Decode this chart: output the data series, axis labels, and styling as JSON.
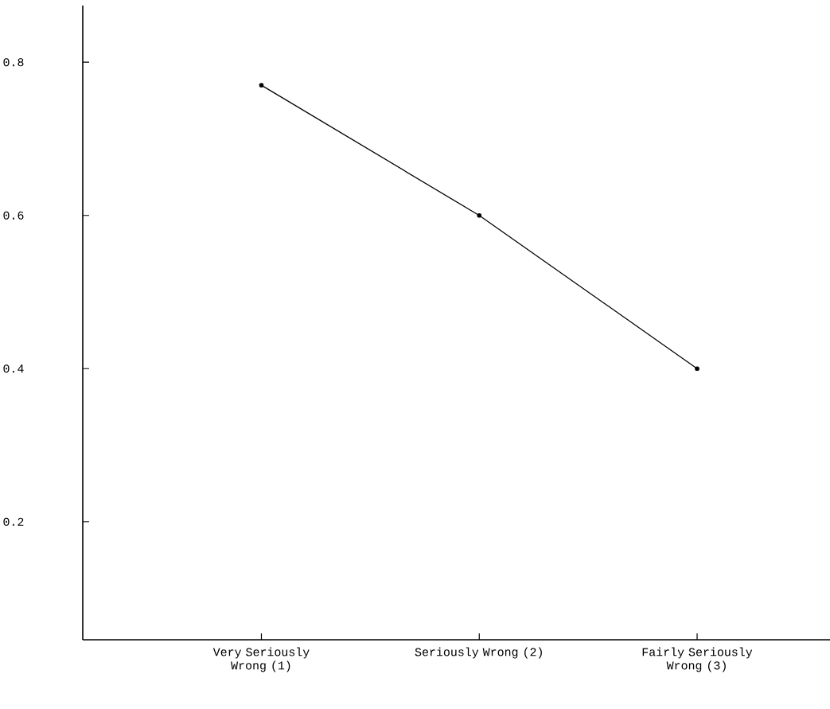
{
  "chart_data": {
    "type": "line",
    "categories": [
      "Very Seriously Wrong (1)",
      "Seriously Wrong (2)",
      "Fairly Seriously Wrong (3)"
    ],
    "values": [
      0.77,
      0.6,
      0.4
    ],
    "color": "#000000",
    "ylim": [
      0.046,
      0.874
    ],
    "yticks": [
      0.2,
      0.4,
      0.6,
      0.8
    ],
    "marker": "circle",
    "line_style": "solid"
  }
}
